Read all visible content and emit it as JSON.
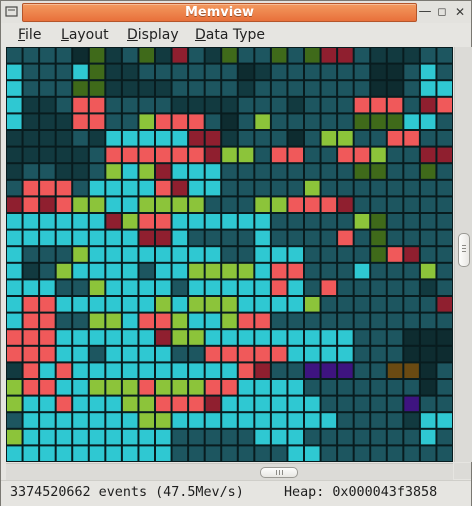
{
  "window": {
    "title": "Memview"
  },
  "menubar": {
    "items": [
      {
        "label_mnemonic": "F",
        "label_rest": "ile"
      },
      {
        "label_mnemonic": "L",
        "label_rest": "ayout"
      },
      {
        "label_mnemonic": "D",
        "label_rest": "isplay"
      },
      {
        "label_mnemonic": "D",
        "label_rest": "ata Type"
      }
    ]
  },
  "statusbar": {
    "events": "3374520662 events (47.5Mev/s)",
    "heap": "Heap: 0x000043f3858"
  },
  "memory_grid": {
    "columns": 27,
    "rows": 25,
    "palette": {
      "0": "#123a40",
      "1": "#1d5660",
      "2": "#2fc8d2",
      "3": "#f0595a",
      "4": "#8f1f2f",
      "5": "#8cc43a",
      "6": "#3f6a1a",
      "7": "#3e1480",
      "8": "#6a4a12",
      "9": "#0e2c30"
    },
    "cells": [
      "111196016041061161644100011",
      "211126001111119011111199121",
      "211166000011110111111199122",
      "200133111100001110111333143",
      "200033115333191511111666221",
      "000010222224401119155113311",
      "000001333333455133113351144",
      "011001525422211111111661161",
      "133312222342211111511111111",
      "434355225555111553334111111",
      "222222453322222211111561111",
      "222222224421111211113161111",
      "211152222222211222111163411",
      "201522221225555233111211151",
      "222115222212222232131111101",
      "233222222525552222511111114",
      "233115523352253311111111111",
      "333222222455222222222111999",
      "333221222211333332222111999",
      "032322222222223411777118891",
      "533225553555332222111111191",
      "522322255333422222211111711",
      "122222225522222222221111022",
      "522222222211111222111111121",
      "222222222211111112211111111"
    ]
  }
}
